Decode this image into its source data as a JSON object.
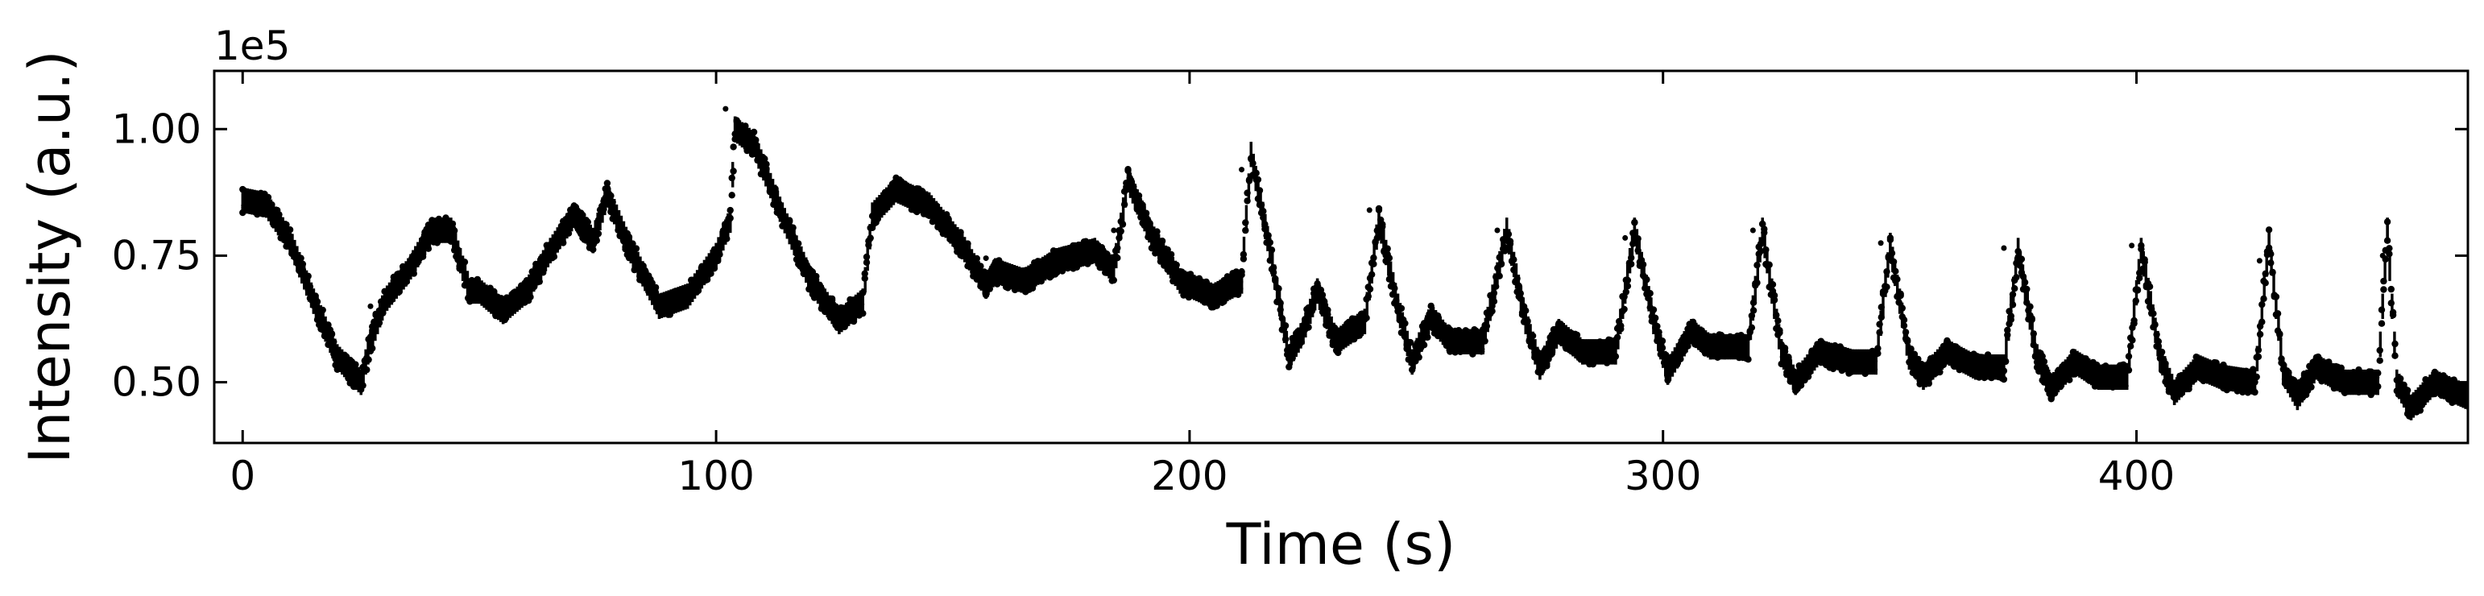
{
  "chart_data": {
    "type": "scatter",
    "title": "",
    "xlabel": "Time (s)",
    "ylabel": "Intensity (a.u.)",
    "y_offset_label": "1e5",
    "xlim": [
      -6,
      470
    ],
    "ylim": [
      0.38,
      1.115
    ],
    "x_ticks": [
      0,
      100,
      200,
      300,
      400
    ],
    "x_tick_labels": [
      "0",
      "100",
      "200",
      "300",
      "400"
    ],
    "y_ticks": [
      0.5,
      0.75,
      1.0
    ],
    "y_tick_labels": [
      "0.50",
      "0.75",
      "1.00"
    ],
    "grid": false,
    "legend": "none",
    "marker_color": "#000000",
    "series": [
      {
        "points": [
          [
            0,
            0.86
          ],
          [
            5,
            0.85
          ],
          [
            10,
            0.78
          ],
          [
            15,
            0.66
          ],
          [
            20,
            0.55
          ],
          [
            25,
            0.5
          ],
          [
            27,
            0.58
          ],
          [
            30,
            0.66
          ],
          [
            35,
            0.72
          ],
          [
            40,
            0.8
          ],
          [
            44,
            0.8
          ],
          [
            48,
            0.68
          ],
          [
            50,
            0.68
          ],
          [
            55,
            0.64
          ],
          [
            60,
            0.68
          ],
          [
            65,
            0.76
          ],
          [
            70,
            0.83
          ],
          [
            74,
            0.78
          ],
          [
            77,
            0.87
          ],
          [
            82,
            0.76
          ],
          [
            88,
            0.65
          ],
          [
            94,
            0.67
          ],
          [
            100,
            0.75
          ],
          [
            103,
            0.82
          ],
          [
            104,
            1.0
          ],
          [
            108,
            0.97
          ],
          [
            114,
            0.83
          ],
          [
            120,
            0.7
          ],
          [
            126,
            0.62
          ],
          [
            131,
            0.66
          ],
          [
            133,
            0.83
          ],
          [
            138,
            0.88
          ],
          [
            145,
            0.85
          ],
          [
            152,
            0.77
          ],
          [
            157,
            0.69
          ],
          [
            159,
            0.72
          ],
          [
            165,
            0.7
          ],
          [
            172,
            0.74
          ],
          [
            180,
            0.76
          ],
          [
            184,
            0.72
          ],
          [
            187,
            0.9
          ],
          [
            192,
            0.79
          ],
          [
            198,
            0.7
          ],
          [
            205,
            0.67
          ],
          [
            211,
            0.7
          ],
          [
            213,
            0.95
          ],
          [
            217,
            0.76
          ],
          [
            221,
            0.55
          ],
          [
            224,
            0.6
          ],
          [
            227,
            0.68
          ],
          [
            231,
            0.58
          ],
          [
            237,
            0.62
          ],
          [
            240,
            0.82
          ],
          [
            244,
            0.65
          ],
          [
            247,
            0.54
          ],
          [
            251,
            0.63
          ],
          [
            255,
            0.58
          ],
          [
            262,
            0.58
          ],
          [
            267,
            0.8
          ],
          [
            271,
            0.62
          ],
          [
            274,
            0.53
          ],
          [
            278,
            0.6
          ],
          [
            283,
            0.56
          ],
          [
            290,
            0.56
          ],
          [
            294,
            0.8
          ],
          [
            298,
            0.62
          ],
          [
            301,
            0.52
          ],
          [
            306,
            0.6
          ],
          [
            310,
            0.57
          ],
          [
            318,
            0.57
          ],
          [
            321,
            0.8
          ],
          [
            325,
            0.56
          ],
          [
            328,
            0.5
          ],
          [
            333,
            0.56
          ],
          [
            340,
            0.54
          ],
          [
            345,
            0.54
          ],
          [
            348,
            0.77
          ],
          [
            352,
            0.55
          ],
          [
            355,
            0.51
          ],
          [
            360,
            0.56
          ],
          [
            366,
            0.53
          ],
          [
            372,
            0.53
          ],
          [
            375,
            0.76
          ],
          [
            379,
            0.55
          ],
          [
            382,
            0.49
          ],
          [
            387,
            0.54
          ],
          [
            392,
            0.51
          ],
          [
            398,
            0.51
          ],
          [
            401,
            0.76
          ],
          [
            405,
            0.55
          ],
          [
            408,
            0.48
          ],
          [
            413,
            0.53
          ],
          [
            418,
            0.51
          ],
          [
            425,
            0.5
          ],
          [
            428,
            0.78
          ],
          [
            431,
            0.52
          ],
          [
            434,
            0.47
          ],
          [
            438,
            0.53
          ],
          [
            444,
            0.5
          ],
          [
            451,
            0.5
          ],
          [
            453,
            0.8
          ],
          [
            455,
            0.5
          ],
          [
            458,
            0.45
          ],
          [
            463,
            0.5
          ],
          [
            470,
            0.47
          ]
        ],
        "outliers": [
          [
            27,
            0.65
          ],
          [
            102,
            1.04
          ],
          [
            157,
            0.745
          ],
          [
            184,
            0.8
          ],
          [
            211,
            0.92
          ],
          [
            238,
            0.84
          ],
          [
            265,
            0.8
          ],
          [
            292,
            0.785
          ],
          [
            319,
            0.8
          ],
          [
            346,
            0.775
          ],
          [
            372,
            0.765
          ],
          [
            399,
            0.77
          ],
          [
            426,
            0.74
          ],
          [
            452,
            0.75
          ]
        ]
      }
    ]
  }
}
